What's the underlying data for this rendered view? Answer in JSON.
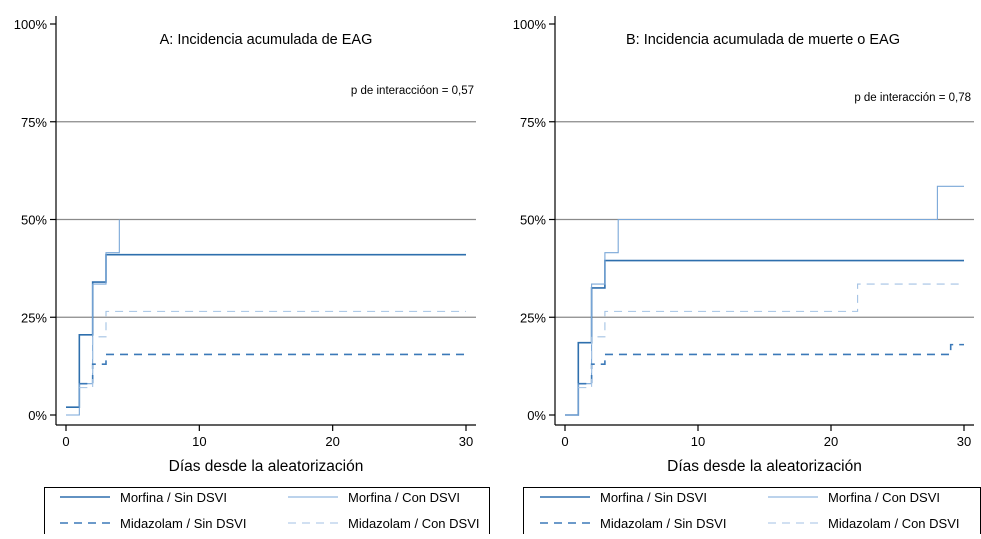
{
  "colors": {
    "morfina_sin": "#2e6fad",
    "morfina_con": "#7aa7d8",
    "midazolam_sin": "#3b79b8",
    "midazolam_con": "#a3c2e4",
    "gridline": "#8a8a8a",
    "axis": "#000000"
  },
  "x_label": "Días desde la aleatorización",
  "chart_data": [
    {
      "type": "line",
      "title": "A: Incidencia acumulada de EAG",
      "annotation": "p de interaccióon = 0,57",
      "xlabel": "Días desde la aleatorización",
      "ylabel": "",
      "xlim": [
        0,
        30
      ],
      "ylim": [
        0,
        100
      ],
      "x_ticks": [
        0,
        10,
        20,
        30
      ],
      "x_tick_labels": [
        "0",
        "10",
        "20",
        "30"
      ],
      "y_ticks": [
        0,
        25,
        50,
        75,
        100
      ],
      "y_tick_labels": [
        "0%",
        "25%",
        "50%",
        "75%",
        "100%"
      ],
      "grid": "horizontal",
      "step": true,
      "legend": [
        "Morfina / Sin DSVI",
        "Morfina / Con DSVI",
        "Midazolam / Sin DSVI",
        "Midazolam / Con DSVI"
      ],
      "series": [
        {
          "name": "Morfina / Sin DSVI",
          "style": "solid",
          "width": 1.6,
          "color": "#2e6fad",
          "x": [
            0,
            1,
            2,
            3,
            30
          ],
          "y": [
            2,
            20.5,
            34,
            41,
            41
          ]
        },
        {
          "name": "Morfina / Con DSVI",
          "style": "solid",
          "width": 1.1,
          "color": "#7aa7d8",
          "x": [
            0,
            1,
            2,
            3,
            4,
            4
          ],
          "y": [
            0,
            8,
            33.5,
            41.5,
            50,
            50
          ]
        },
        {
          "name": "Midazolam / Sin DSVI",
          "style": "dashed",
          "width": 1.6,
          "color": "#3b79b8",
          "x": [
            1,
            2,
            3,
            30
          ],
          "y": [
            8,
            13,
            15.5,
            15.5
          ]
        },
        {
          "name": "Midazolam / Con DSVI",
          "style": "dashed",
          "width": 1.1,
          "color": "#a3c2e4",
          "x": [
            1,
            2,
            3,
            30
          ],
          "y": [
            7,
            20,
            26.5,
            26.5
          ]
        }
      ]
    },
    {
      "type": "line",
      "title": "B: Incidencia acumulada de muerte o EAG",
      "annotation": "p de interacción = 0,78",
      "xlabel": "Días desde la aleatorización",
      "ylabel": "",
      "xlim": [
        0,
        30
      ],
      "ylim": [
        0,
        100
      ],
      "x_ticks": [
        0,
        10,
        20,
        30
      ],
      "x_tick_labels": [
        "0",
        "10",
        "20",
        "30"
      ],
      "y_ticks": [
        0,
        25,
        50,
        75,
        100
      ],
      "y_tick_labels": [
        "0%",
        "25%",
        "50%",
        "75%",
        "100%"
      ],
      "grid": "horizontal",
      "step": true,
      "legend": [
        "Morfina / Sin DSVI",
        "Morfina / Con DSVI",
        "Midazolam / Sin DSVI",
        "Midazolam / Con DSVI"
      ],
      "series": [
        {
          "name": "Morfina / Sin DSVI",
          "style": "solid",
          "width": 1.6,
          "color": "#2e6fad",
          "x": [
            0,
            1,
            2,
            3,
            30
          ],
          "y": [
            0,
            18.5,
            32.5,
            39.5,
            39.5
          ]
        },
        {
          "name": "Morfina / Con DSVI",
          "style": "solid",
          "width": 1.1,
          "color": "#7aa7d8",
          "x": [
            0,
            1,
            2,
            3,
            4,
            28,
            30
          ],
          "y": [
            0,
            8,
            33.5,
            41.5,
            50,
            58.5,
            58.5
          ]
        },
        {
          "name": "Midazolam / Sin DSVI",
          "style": "dashed",
          "width": 1.6,
          "color": "#3b79b8",
          "x": [
            1,
            2,
            3,
            29,
            30
          ],
          "y": [
            8,
            13,
            15.5,
            18,
            18
          ]
        },
        {
          "name": "Midazolam / Con DSVI",
          "style": "dashed",
          "width": 1.1,
          "color": "#a3c2e4",
          "x": [
            1,
            2,
            3,
            22,
            30
          ],
          "y": [
            7,
            20,
            26.5,
            33.5,
            33.5
          ]
        }
      ]
    }
  ]
}
